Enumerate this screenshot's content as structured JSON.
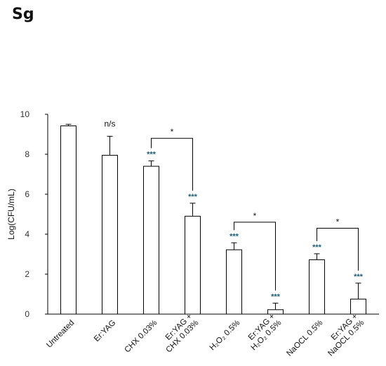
{
  "panel_label": "Sg",
  "chart_data": {
    "type": "bar",
    "title": "",
    "xlabel": "",
    "ylabel": "Log(CFU/mL)",
    "ylim": [
      0,
      10
    ],
    "yticks": [
      0,
      2,
      4,
      6,
      8,
      10
    ],
    "grid": false,
    "legend": "none",
    "bar_fill": "#ffffff",
    "bar_stroke": "#000000",
    "significance_color": "#1f5f7a",
    "categories": [
      {
        "label": [
          "Untreated"
        ]
      },
      {
        "label": [
          "Er:YAG"
        ]
      },
      {
        "label": [
          "CHX 0.03%"
        ]
      },
      {
        "label": [
          "Er:YAG +",
          "CHX 0.03%"
        ]
      },
      {
        "label": [
          "H₂O₂ 0.5%"
        ]
      },
      {
        "label": [
          "Er:YAG +",
          "H₂O₂ 0.5%"
        ]
      },
      {
        "label": [
          "NaOCL 0.5%"
        ]
      },
      {
        "label": [
          "Er:YAG +",
          "NaOCL 0.5%"
        ]
      }
    ],
    "values": [
      9.42,
      7.95,
      7.4,
      4.9,
      3.22,
      0.22,
      2.72,
      0.75
    ],
    "errors": [
      0.08,
      0.95,
      0.27,
      0.65,
      0.35,
      0.33,
      0.3,
      0.8
    ],
    "significance": [
      "",
      "n/s",
      "***",
      "***",
      "***",
      "***",
      "***",
      "***"
    ],
    "comparisons": [
      {
        "from": 2,
        "to": 3,
        "label": "*",
        "y": 8.8
      },
      {
        "from": 4,
        "to": 5,
        "label": "*",
        "y": 4.6
      },
      {
        "from": 6,
        "to": 7,
        "label": "*",
        "y": 4.3
      }
    ]
  }
}
